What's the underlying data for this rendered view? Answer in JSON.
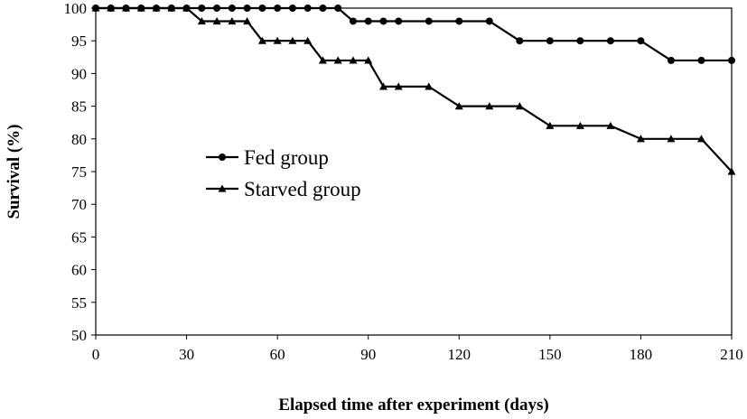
{
  "chart_data": {
    "type": "line",
    "title": "",
    "xlabel": "Elapsed time after experiment (days)",
    "ylabel": "Survival (%)",
    "xlim": [
      0,
      210
    ],
    "ylim": [
      50,
      100
    ],
    "xticks": [
      0,
      30,
      60,
      90,
      120,
      150,
      180,
      210
    ],
    "yticks": [
      50,
      55,
      60,
      65,
      70,
      75,
      80,
      85,
      90,
      95,
      100
    ],
    "grid": false,
    "legend_position": "center-left",
    "series": [
      {
        "name": "Fed group",
        "marker": "circle",
        "color": "#000000",
        "x": [
          0,
          5,
          10,
          15,
          20,
          25,
          30,
          35,
          40,
          45,
          50,
          55,
          60,
          65,
          70,
          75,
          80,
          85,
          90,
          95,
          100,
          110,
          120,
          130,
          140,
          150,
          160,
          170,
          180,
          190,
          200,
          210
        ],
        "y": [
          100,
          100,
          100,
          100,
          100,
          100,
          100,
          100,
          100,
          100,
          100,
          100,
          100,
          100,
          100,
          100,
          100,
          98,
          98,
          98,
          98,
          98,
          98,
          98,
          95,
          95,
          95,
          95,
          95,
          92,
          92,
          92
        ]
      },
      {
        "name": "Starved group",
        "marker": "triangle",
        "color": "#000000",
        "x": [
          0,
          5,
          10,
          15,
          20,
          25,
          30,
          35,
          40,
          45,
          50,
          55,
          60,
          65,
          70,
          75,
          80,
          85,
          90,
          95,
          100,
          110,
          120,
          130,
          140,
          150,
          160,
          170,
          180,
          190,
          200,
          210
        ],
        "y": [
          100,
          100,
          100,
          100,
          100,
          100,
          100,
          98,
          98,
          98,
          98,
          95,
          95,
          95,
          95,
          92,
          92,
          92,
          92,
          88,
          88,
          88,
          85,
          85,
          85,
          82,
          82,
          82,
          80,
          80,
          80,
          75
        ]
      }
    ]
  }
}
